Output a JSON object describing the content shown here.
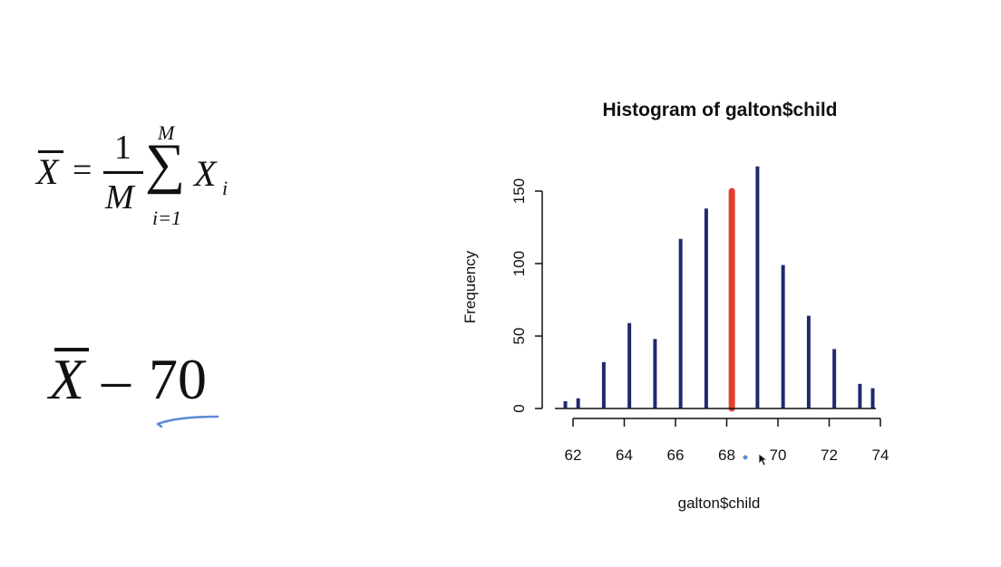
{
  "equation": {
    "lhs": "X",
    "equals": "=",
    "numerator": "1",
    "denominator": "M",
    "sum_upper": "M",
    "sum_lower": "i=1",
    "sigma": "∑",
    "term": "X",
    "subscript": "i"
  },
  "expression": {
    "symbol": "X",
    "operator": "–",
    "value": "70"
  },
  "colors": {
    "bars": "#1f2a6e",
    "highlight": "#e2412f",
    "annotation": "#5b8ad6",
    "axis": "#111111"
  },
  "chart_data": {
    "type": "bar",
    "title": "Histogram of galton$child",
    "xlabel": "galton$child",
    "ylabel": "Frequency",
    "xlim": [
      61.7,
      74
    ],
    "ylim": [
      0,
      167
    ],
    "xticks": [
      62,
      64,
      66,
      68,
      70,
      72,
      74
    ],
    "yticks": [
      0,
      50,
      100,
      150
    ],
    "x": [
      61.7,
      62.2,
      63.2,
      64.2,
      65.2,
      66.2,
      67.2,
      68.2,
      69.2,
      70.2,
      71.2,
      72.2,
      73.2,
      73.7
    ],
    "values": [
      5,
      7,
      32,
      59,
      48,
      117,
      138,
      150,
      167,
      99,
      64,
      41,
      17,
      14
    ],
    "highlight_x": 68.2
  }
}
